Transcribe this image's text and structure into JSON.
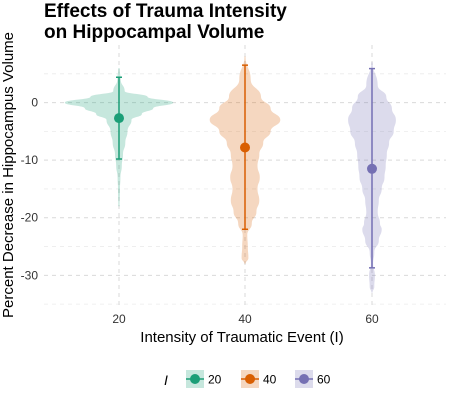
{
  "chart_data": {
    "type": "violin",
    "title_lines": [
      "Effects of Trauma Intensity",
      "on Hippocampal Volume"
    ],
    "xlabel": "Intensity of Traumatic Event (I)",
    "ylabel": "Percent Decrease in Hippocampus Volume",
    "ylim": [
      -35.5,
      10
    ],
    "y_ticks": [
      0,
      -10,
      -20,
      -30
    ],
    "x_tick_labels": [
      "20",
      "40",
      "60"
    ],
    "grid": "dashed",
    "legend": {
      "position": "bottom",
      "title": "I",
      "labels": [
        "20",
        "40",
        "60"
      ]
    },
    "series": [
      {
        "x": "20",
        "color": "#1b9e77",
        "mean": -2.7,
        "error_low": -9.8,
        "error_high": 4.4,
        "violin_min": -18,
        "violin_max": 6,
        "density": [
          [
            6,
            0.01
          ],
          [
            4,
            0.03
          ],
          [
            2,
            0.1
          ],
          [
            1,
            0.5
          ],
          [
            0,
            0.95
          ],
          [
            -1,
            0.6
          ],
          [
            -2,
            0.4
          ],
          [
            -3,
            0.22
          ],
          [
            -5,
            0.15
          ],
          [
            -7,
            0.11
          ],
          [
            -9,
            0.07
          ],
          [
            -11,
            0.05
          ],
          [
            -13,
            0.025
          ],
          [
            -15,
            0.018
          ],
          [
            -18,
            0.01
          ]
        ]
      },
      {
        "x": "40",
        "color": "#d95f02",
        "mean": -7.8,
        "error_low": -22.0,
        "error_high": 6.5,
        "violin_min": -28,
        "violin_max": 8,
        "density": [
          [
            8,
            0.01
          ],
          [
            4,
            0.1
          ],
          [
            1,
            0.28
          ],
          [
            -1,
            0.45
          ],
          [
            -3,
            0.62
          ],
          [
            -5,
            0.45
          ],
          [
            -7,
            0.32
          ],
          [
            -9,
            0.25
          ],
          [
            -11,
            0.22
          ],
          [
            -13,
            0.26
          ],
          [
            -15,
            0.22
          ],
          [
            -17,
            0.25
          ],
          [
            -19,
            0.2
          ],
          [
            -21,
            0.12
          ],
          [
            -23,
            0.04
          ],
          [
            -25,
            0.05
          ],
          [
            -27,
            0.06
          ],
          [
            -28,
            0.01
          ]
        ]
      },
      {
        "x": "60",
        "color": "#7570b3",
        "mean": -11.5,
        "error_low": -28.7,
        "error_high": 5.9,
        "violin_min": -33,
        "violin_max": 7,
        "density": [
          [
            7,
            0.01
          ],
          [
            3,
            0.1
          ],
          [
            1,
            0.25
          ],
          [
            -1,
            0.35
          ],
          [
            -3,
            0.42
          ],
          [
            -5,
            0.38
          ],
          [
            -7,
            0.3
          ],
          [
            -9,
            0.26
          ],
          [
            -11,
            0.24
          ],
          [
            -13,
            0.22
          ],
          [
            -15,
            0.17
          ],
          [
            -17,
            0.12
          ],
          [
            -19,
            0.1
          ],
          [
            -21,
            0.14
          ],
          [
            -22,
            0.17
          ],
          [
            -24,
            0.12
          ],
          [
            -26,
            0.04
          ],
          [
            -28,
            0.02
          ],
          [
            -30,
            0.05
          ],
          [
            -32,
            0.04
          ],
          [
            -33,
            0.01
          ]
        ]
      }
    ]
  }
}
